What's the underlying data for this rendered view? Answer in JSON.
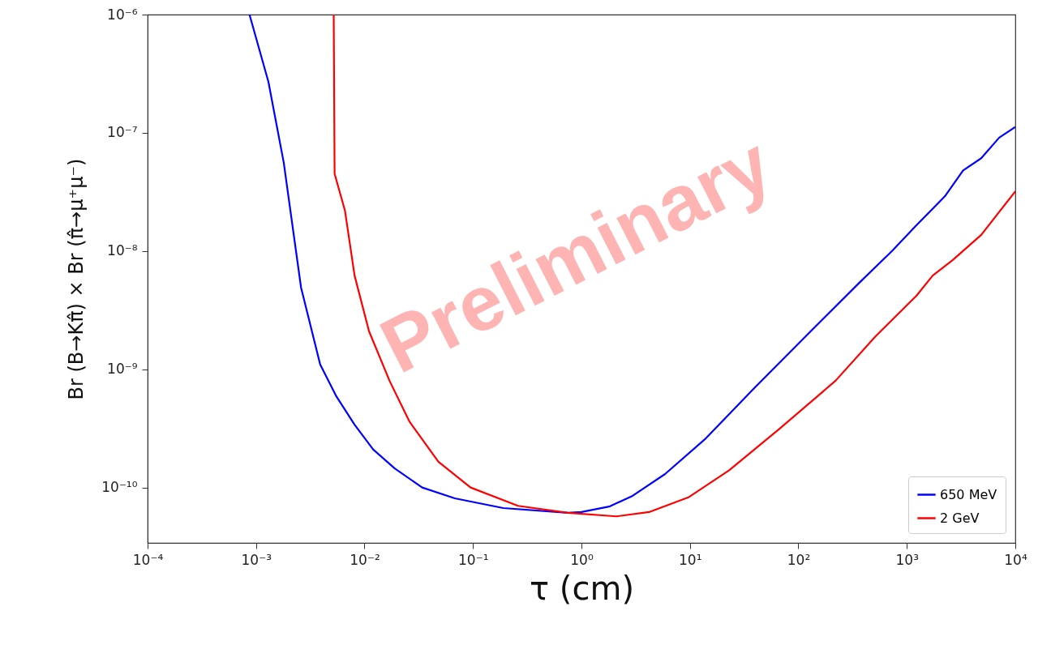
{
  "chart_data": {
    "type": "line",
    "xlabel": "τ (cm)",
    "ylabel": "Br (B→Kπ̂) ×  Br (π̂→μ⁺μ⁻)",
    "log": "xy",
    "grid": false,
    "legend": "bottom right",
    "xlim": [
      0.0001,
      10000
    ],
    "ylim": [
      3.4e-11,
      1e-06
    ],
    "xticks": [
      {
        "value": 0.0001,
        "label": "10⁻⁴"
      },
      {
        "value": 0.001,
        "label": "10⁻³"
      },
      {
        "value": 0.01,
        "label": "10⁻²"
      },
      {
        "value": 0.1,
        "label": "10⁻¹"
      },
      {
        "value": 1,
        "label": "10⁰"
      },
      {
        "value": 10,
        "label": "10¹"
      },
      {
        "value": 100,
        "label": "10²"
      },
      {
        "value": 1000,
        "label": "10³"
      },
      {
        "value": 10000,
        "label": "10⁴"
      }
    ],
    "yticks": [
      {
        "value": 1e-10,
        "label": "10⁻¹⁰"
      },
      {
        "value": 1e-09,
        "label": "10⁻⁹"
      },
      {
        "value": 1e-08,
        "label": "10⁻⁸"
      },
      {
        "value": 1e-07,
        "label": "10⁻⁷"
      },
      {
        "value": 1e-06,
        "label": "10⁻⁶"
      }
    ],
    "series": [
      {
        "name": "650 MeV",
        "color": "#0000ff",
        "x": [
          0.00087,
          0.0013,
          0.0018,
          0.0026,
          0.0039,
          0.0055,
          0.0081,
          0.012,
          0.019,
          0.034,
          0.068,
          0.19,
          0.75,
          1.0,
          1.8,
          2.96,
          5.9,
          14,
          39,
          130,
          365,
          730,
          1230,
          2240,
          3300,
          4850,
          7100,
          10000
        ],
        "values": [
          1e-06,
          2.7e-07,
          5.6e-08,
          4.9e-09,
          1.1e-09,
          5.9e-10,
          3.4e-10,
          2.1e-10,
          1.45e-10,
          1e-10,
          8.1e-11,
          6.7e-11,
          6.1e-11,
          6.2e-11,
          6.9e-11,
          8.5e-11,
          1.3e-10,
          2.6e-10,
          6.9e-10,
          2.1e-09,
          5.4e-09,
          1e-08,
          1.66e-08,
          2.9e-08,
          4.8e-08,
          6.1e-08,
          9.1e-08,
          1.12e-07
        ]
      },
      {
        "name": "2 GeV",
        "color": "#ff0000",
        "x": [
          0.0052,
          0.0053,
          0.0066,
          0.0081,
          0.011,
          0.017,
          0.026,
          0.048,
          0.095,
          0.26,
          0.75,
          2.1,
          4.2,
          9.8,
          23,
          66,
          220,
          515,
          1230,
          1730,
          2650,
          4850,
          10000
        ],
        "values": [
          1e-06,
          4.5e-08,
          2.2e-08,
          6.2e-09,
          2.1e-09,
          8e-10,
          3.6e-10,
          1.65e-10,
          1e-10,
          7e-11,
          6.1e-11,
          5.7e-11,
          6.2e-11,
          8.3e-11,
          1.4e-10,
          3.1e-10,
          8e-10,
          1.9e-09,
          4.2e-09,
          6.2e-09,
          8.4e-09,
          1.37e-08,
          3.2e-08
        ]
      }
    ],
    "annotations": [
      "Preliminary"
    ]
  }
}
